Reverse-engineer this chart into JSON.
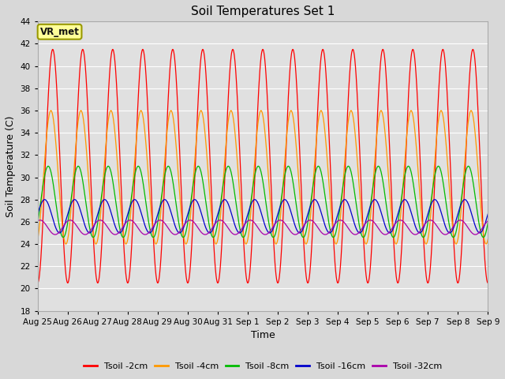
{
  "title": "Soil Temperatures Set 1",
  "xlabel": "Time",
  "ylabel": "Soil Temperature (C)",
  "ylim": [
    18,
    44
  ],
  "yticks": [
    18,
    20,
    22,
    24,
    26,
    28,
    30,
    32,
    34,
    36,
    38,
    40,
    42,
    44
  ],
  "fig_bg_color": "#d8d8d8",
  "plot_bg": "#e0e0e0",
  "annotation_text": "VR_met",
  "annotation_bg": "#ffff99",
  "annotation_border": "#999900",
  "lines": [
    {
      "label": "Tsoil -2cm",
      "color": "#ff0000",
      "amplitude": 10.5,
      "mean": 31.0,
      "phase": 0.0,
      "amp_depth": 1.0
    },
    {
      "label": "Tsoil -4cm",
      "color": "#ff9900",
      "amplitude": 6.0,
      "mean": 30.0,
      "phase": 0.06,
      "amp_depth": 0.85
    },
    {
      "label": "Tsoil -8cm",
      "color": "#00bb00",
      "amplitude": 3.2,
      "mean": 27.8,
      "phase": 0.15,
      "amp_depth": 0.75
    },
    {
      "label": "Tsoil -16cm",
      "color": "#0000cc",
      "amplitude": 1.5,
      "mean": 26.5,
      "phase": 0.27,
      "amp_depth": 0.65
    },
    {
      "label": "Tsoil -32cm",
      "color": "#aa00aa",
      "amplitude": 0.65,
      "mean": 25.5,
      "phase": 0.42,
      "amp_depth": 0.55
    }
  ],
  "xtick_labels": [
    "Aug 25",
    "Aug 26",
    "Aug 27",
    "Aug 28",
    "Aug 29",
    "Aug 30",
    "Aug 31",
    "Sep 1",
    "Sep 2",
    "Sep 3",
    "Sep 4",
    "Sep 5",
    "Sep 6",
    "Sep 7",
    "Sep 8",
    "Sep 9"
  ],
  "n_days": 15,
  "n_points": 2000
}
